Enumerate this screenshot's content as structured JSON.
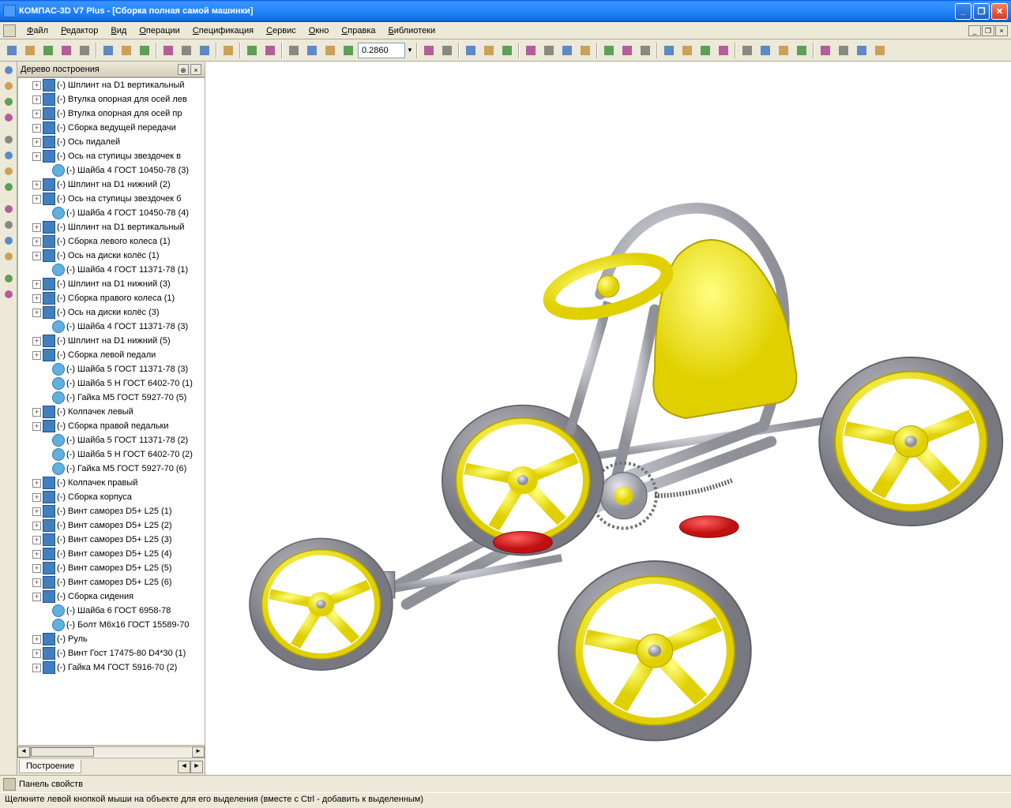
{
  "title": "КОМПАС-3D V7 Plus - [Сборка полная самой машинки]",
  "menu": [
    "Файл",
    "Редактор",
    "Вид",
    "Операции",
    "Спецификация",
    "Сервис",
    "Окно",
    "Справка",
    "Библиотеки"
  ],
  "zoom_value": "0.2860",
  "panel_title": "Дерево построения",
  "tab_label": "Построение",
  "properties_label": "Панель свойств",
  "status": "Щелкните левой кнопкой мыши на объекте для его выделения (вместе с Ctrl - добавить к выделенным)",
  "colors": {
    "titlebar_blue": "#2060c0",
    "yellow": "#fff000",
    "red": "#e02020",
    "grey_metal": "#b8b8c0",
    "grey_dark": "#888890",
    "tire": "#9a9aa0"
  },
  "tree": [
    {
      "expand": true,
      "icon": "assembly",
      "label": "(-) Шплинт на D1 вертикальный"
    },
    {
      "expand": true,
      "icon": "assembly",
      "label": "(-) Втулка опорная для осей лев"
    },
    {
      "expand": true,
      "icon": "assembly",
      "label": "(-) Втулка опорная для осей пр"
    },
    {
      "expand": true,
      "icon": "assembly",
      "label": "(-) Сборка ведущей передачи"
    },
    {
      "expand": true,
      "icon": "assembly",
      "label": "(-) Ось пидалей"
    },
    {
      "expand": true,
      "icon": "assembly",
      "label": "(-) Ось на ступицы звездочек в"
    },
    {
      "expand": false,
      "icon": "part",
      "label": "(-) Шайба 4 ГОСТ 10450-78 (3)"
    },
    {
      "expand": true,
      "icon": "assembly",
      "label": "(-) Шплинт на D1 нижний (2)"
    },
    {
      "expand": true,
      "icon": "assembly",
      "label": "(-) Ось на ступицы звездочек б"
    },
    {
      "expand": false,
      "icon": "part",
      "label": "(-) Шайба 4 ГОСТ 10450-78 (4)"
    },
    {
      "expand": true,
      "icon": "assembly",
      "label": "(-) Шплинт на D1 вертикальный"
    },
    {
      "expand": true,
      "icon": "assembly",
      "label": "(-) Сборка левого колеса (1)"
    },
    {
      "expand": true,
      "icon": "assembly",
      "label": "(-) Ось на диски колёс (1)"
    },
    {
      "expand": false,
      "icon": "part",
      "label": "(-) Шайба 4 ГОСТ 11371-78 (1)"
    },
    {
      "expand": true,
      "icon": "assembly",
      "label": "(-) Шплинт на D1 нижний (3)"
    },
    {
      "expand": true,
      "icon": "assembly",
      "label": "(-) Сборка правого колеса (1)"
    },
    {
      "expand": true,
      "icon": "assembly",
      "label": "(-) Ось на диски колёс (3)"
    },
    {
      "expand": false,
      "icon": "part",
      "label": "(-) Шайба 4 ГОСТ 11371-78 (3)"
    },
    {
      "expand": true,
      "icon": "assembly",
      "label": "(-) Шплинт на D1 нижний (5)"
    },
    {
      "expand": true,
      "icon": "assembly",
      "label": "(-) Сборка левой педали"
    },
    {
      "expand": false,
      "icon": "part",
      "label": "(-) Шайба 5 ГОСТ 11371-78 (3)"
    },
    {
      "expand": false,
      "icon": "part",
      "label": "(-) Шайба 5 Н ГОСТ 6402-70 (1)"
    },
    {
      "expand": false,
      "icon": "part",
      "label": "(-) Гайка М5 ГОСТ 5927-70 (5)"
    },
    {
      "expand": true,
      "icon": "assembly",
      "label": "(-) Колпачек левый"
    },
    {
      "expand": true,
      "icon": "assembly",
      "label": "(-) Сборка правой педальки"
    },
    {
      "expand": false,
      "icon": "part",
      "label": "(-) Шайба 5 ГОСТ 11371-78 (2)"
    },
    {
      "expand": false,
      "icon": "part",
      "label": "(-) Шайба 5 Н ГОСТ 6402-70 (2)"
    },
    {
      "expand": false,
      "icon": "part",
      "label": "(-) Гайка М5 ГОСТ 5927-70 (6)"
    },
    {
      "expand": true,
      "icon": "assembly",
      "label": "(-) Колпачек правый"
    },
    {
      "expand": true,
      "icon": "assembly",
      "label": "(-) Сборка корпуса"
    },
    {
      "expand": true,
      "icon": "assembly",
      "label": "(-) Винт саморез D5+ L25 (1)"
    },
    {
      "expand": true,
      "icon": "assembly",
      "label": "(-) Винт саморез D5+ L25 (2)"
    },
    {
      "expand": true,
      "icon": "assembly",
      "label": "(-) Винт саморез D5+ L25 (3)"
    },
    {
      "expand": true,
      "icon": "assembly",
      "label": "(-) Винт саморез D5+ L25 (4)"
    },
    {
      "expand": true,
      "icon": "assembly",
      "label": "(-) Винт саморез D5+ L25 (5)"
    },
    {
      "expand": true,
      "icon": "assembly",
      "label": "(-) Винт саморез D5+ L25 (6)"
    },
    {
      "expand": true,
      "icon": "assembly",
      "label": "(-) Сборка сидения"
    },
    {
      "expand": false,
      "icon": "part",
      "label": "(-) Шайба 6 ГОСТ 6958-78"
    },
    {
      "expand": false,
      "icon": "part",
      "label": "(-) Болт М6х16 ГОСТ 15589-70"
    },
    {
      "expand": true,
      "icon": "assembly",
      "label": "(-) Руль"
    },
    {
      "expand": true,
      "icon": "assembly",
      "label": "(-) Винт Гост 17475-80 D4*30 (1)"
    },
    {
      "expand": true,
      "icon": "assembly",
      "label": "(-) Гайка М4 ГОСТ 5916-70 (2)"
    }
  ],
  "toolbar_icons": [
    "new",
    "open",
    "save",
    "print",
    "preview",
    "cut",
    "copy",
    "paste",
    "props",
    "undo",
    "redo",
    "stop",
    "fx",
    "help",
    "zoomfit",
    "zoomin",
    "zoomout",
    "zoomwin",
    "refresh",
    "pan",
    "rotate",
    "orbit",
    "cube1",
    "cube2",
    "cube3",
    "shade",
    "wire",
    "color",
    "assem1",
    "assem2",
    "tool1",
    "tool2",
    "grid1",
    "grid2",
    "grid3",
    "grid4",
    "more1",
    "more2",
    "more3",
    "layer",
    "chain",
    "end"
  ],
  "left_icons": [
    "arrow",
    "select",
    "color1",
    "color2",
    "paperclip",
    "text",
    "dim",
    "sheet",
    "box1",
    "box2",
    "box3",
    "box4",
    "face",
    "tool"
  ]
}
